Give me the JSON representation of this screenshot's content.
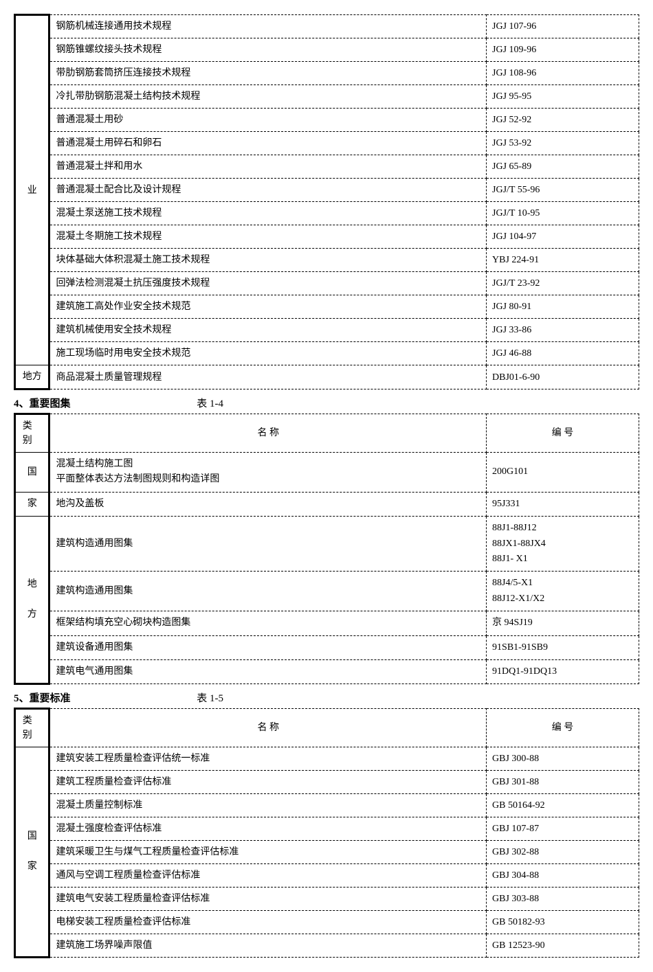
{
  "table1": {
    "category": "业",
    "rows": [
      {
        "name": "钢筋机械连接通用技术规程",
        "code": "JGJ 107-96"
      },
      {
        "name": "钢筋锥螺纹接头技术规程",
        "code": "JGJ 109-96"
      },
      {
        "name": "带肋钢筋套筒挤压连接技术规程",
        "code": "JGJ 108-96"
      },
      {
        "name": "冷扎带肋钢筋混凝土结构技术规程",
        "code": "JGJ 95-95"
      },
      {
        "name": "普通混凝土用砂",
        "code": "JGJ 52-92"
      },
      {
        "name": "普通混凝土用碎石和卵石",
        "code": "JGJ 53-92"
      },
      {
        "name": "普通混凝土拌和用水",
        "code": "JGJ 65-89"
      },
      {
        "name": "普通混凝土配合比及设计规程",
        "code": "JGJ/T 55-96"
      },
      {
        "name": "混凝土泵送施工技术规程",
        "code": "JGJ/T 10-95"
      },
      {
        "name": "混凝土冬期施工技术规程",
        "code": "JGJ 104-97"
      },
      {
        "name": "块体基础大体积混凝土施工技术规程",
        "code": "YBJ 224-91"
      },
      {
        "name": "回弹法检测混凝土抗压强度技术规程",
        "code": "JGJ/T 23-92"
      },
      {
        "name": "建筑施工高处作业安全技术规范",
        "code": "JGJ 80-91"
      },
      {
        "name": "建筑机械使用安全技术规程",
        "code": "JGJ 33-86"
      },
      {
        "name": "施工现场临时用电安全技术规范",
        "code": "JGJ 46-88"
      }
    ],
    "lastRow": {
      "category": "地方",
      "name": "商品混凝土质量管理规程",
      "code": "DBJ01-6-90"
    }
  },
  "section4": {
    "title": "4、重要图集",
    "tableLabel": "表 1-4"
  },
  "table2": {
    "headers": {
      "category": "类别",
      "name": "名 称",
      "code": "编 号"
    },
    "rows": [
      {
        "category": "国",
        "name": "混凝土结构施工图\n平面整体表达方法制图规则和构造详图",
        "code": "200G101",
        "rowspan": 1
      },
      {
        "category": "家",
        "name": "地沟及盖板",
        "code": "95J331",
        "rowspan": 1
      }
    ],
    "groupCategory": "地\n\n方",
    "groupRows": [
      {
        "name": "建筑构造通用图集",
        "code": "88J1-88J12\n88JX1-88JX4\n88J1- X1"
      },
      {
        "name": "建筑构造通用图集",
        "code": "88J4/5-X1\n88J12-X1/X2"
      },
      {
        "name": "框架结构填充空心砌块构造图集",
        "code": "京 94SJ19"
      },
      {
        "name": "建筑设备通用图集",
        "code": "91SB1-91SB9"
      },
      {
        "name": "建筑电气通用图集",
        "code": "91DQ1-91DQ13"
      }
    ]
  },
  "section5": {
    "title": "5、重要标准",
    "tableLabel": "表 1-5"
  },
  "table3": {
    "headers": {
      "category": "类别",
      "name": "名 称",
      "code": "编 号"
    },
    "groupCategory": "国\n\n家",
    "rows": [
      {
        "name": "建筑安装工程质量检查评估统一标准",
        "code": "GBJ 300-88"
      },
      {
        "name": "建筑工程质量检查评估标准",
        "code": "GBJ 301-88"
      },
      {
        "name": "混凝土质量控制标准",
        "code": "GB 50164-92"
      },
      {
        "name": "混凝土强度检查评估标准",
        "code": "GBJ 107-87"
      },
      {
        "name": "建筑采暖卫生与煤气工程质量检查评估标准",
        "code": "GBJ 302-88"
      },
      {
        "name": "通风与空调工程质量检查评估标准",
        "code": "GBJ 304-88"
      },
      {
        "name": "建筑电气安装工程质量检查评估标准",
        "code": "GBJ 303-88"
      },
      {
        "name": "电梯安装工程质量检查评估标准",
        "code": "GB 50182-93"
      },
      {
        "name": "建筑施工场界噪声限值",
        "code": "GB 12523-90"
      }
    ]
  }
}
